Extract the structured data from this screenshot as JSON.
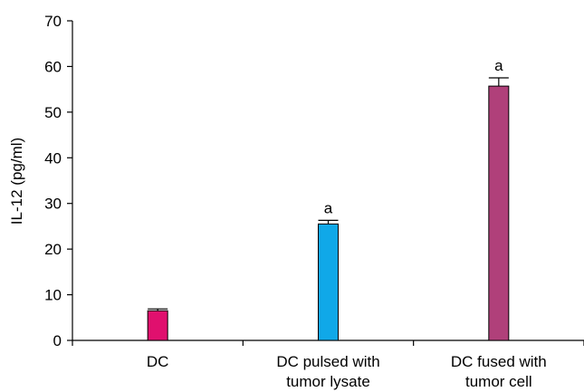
{
  "chart_data": {
    "type": "bar",
    "ylabel": "IL-12 (pg/ml)",
    "ylim": [
      0,
      70
    ],
    "yticks": [
      0,
      10,
      20,
      30,
      40,
      50,
      60,
      70
    ],
    "grid": false,
    "categories": [
      [
        "DC"
      ],
      [
        "DC pulsed with",
        "tumor lysate"
      ],
      [
        "DC fused with",
        "tumor cell"
      ]
    ],
    "values": [
      6.5,
      25.5,
      55.7
    ],
    "errors": [
      0.4,
      0.8,
      1.8
    ],
    "annotations": [
      "",
      "a",
      "a"
    ],
    "colors": [
      "#e0106e",
      "#10a8e8",
      "#b0407a"
    ]
  }
}
